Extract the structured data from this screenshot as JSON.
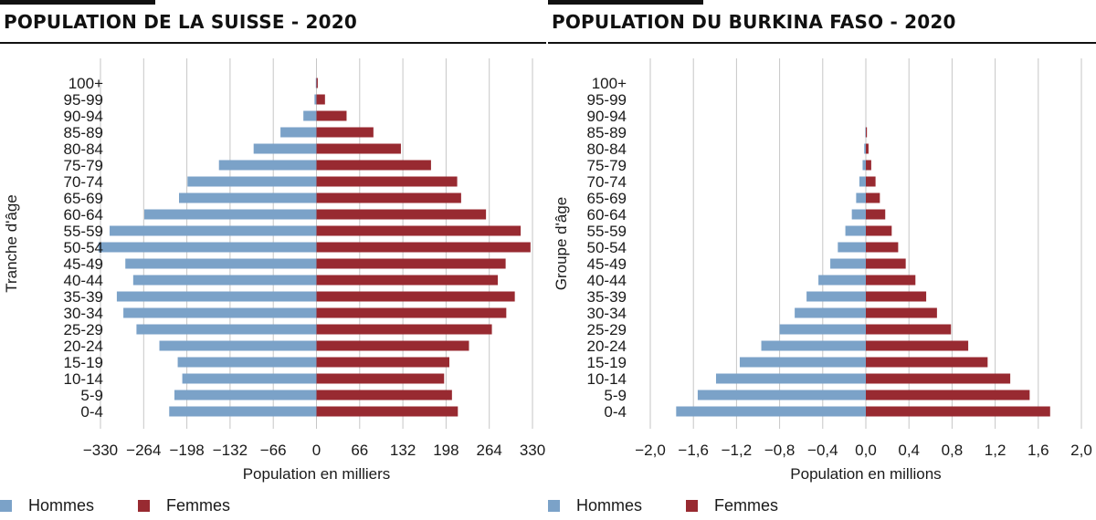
{
  "colors": {
    "men": "#7ba2c8",
    "women": "#982a31",
    "grid": "#c6c6c6",
    "text": "#1a1a1a"
  },
  "charts": {
    "ch": {
      "title": "POPULATION DE LA SUISSE - 2020",
      "legend": {
        "men": "Hommes",
        "women": "Femmes"
      }
    },
    "bf": {
      "title": "POPULATION DU BURKINA FASO - 2020",
      "legend": {
        "men": "Hommes",
        "women": "Femmes"
      }
    }
  },
  "chart_data": [
    {
      "type": "bar",
      "orientation": "horizontal",
      "title": "POPULATION DE LA SUISSE - 2020",
      "xlabel": "Population en milliers",
      "ylabel": "Tranche d'âge",
      "xlim": [
        -330,
        330
      ],
      "xticks": [
        -330,
        -264,
        -198,
        -132,
        -66,
        0,
        66,
        132,
        198,
        264,
        330
      ],
      "xtick_labels": [
        "−330",
        "−264",
        "−198",
        "−132",
        "−66",
        "0",
        "66",
        "132",
        "198",
        "264",
        "330"
      ],
      "grid": true,
      "legend_position": "bottom",
      "categories": [
        "0-4",
        "5-9",
        "10-14",
        "15-19",
        "20-24",
        "25-29",
        "30-34",
        "35-39",
        "40-44",
        "45-49",
        "50-54",
        "55-59",
        "60-64",
        "65-69",
        "70-74",
        "75-79",
        "80-84",
        "85-89",
        "90-94",
        "95-99",
        "100+"
      ],
      "series": [
        {
          "name": "Hommes",
          "values": [
            -225,
            -217,
            -205,
            -212,
            -240,
            -275,
            -295,
            -305,
            -280,
            -292,
            -333,
            -316,
            -263,
            -210,
            -197,
            -149,
            -96,
            -55,
            -20,
            -3,
            -1
          ]
        },
        {
          "name": "Femmes",
          "values": [
            216,
            207,
            195,
            203,
            233,
            268,
            290,
            303,
            277,
            289,
            327,
            312,
            259,
            221,
            215,
            175,
            129,
            87,
            46,
            13,
            2
          ]
        }
      ]
    },
    {
      "type": "bar",
      "orientation": "horizontal",
      "title": "POPULATION DU BURKINA FASO - 2020",
      "xlabel": "Population en millions",
      "ylabel": "Groupe d'âge",
      "xlim": [
        -2.0,
        2.0
      ],
      "xticks": [
        -2.0,
        -1.6,
        -1.2,
        -0.8,
        -0.4,
        0.0,
        0.4,
        0.8,
        1.2,
        1.6,
        2.0
      ],
      "xtick_labels": [
        "−2,0",
        "−1,6",
        "−1,2",
        "−0,8",
        "−0,4",
        "0,0",
        "0,4",
        "0,8",
        "1,2",
        "1,6",
        "2,0"
      ],
      "grid": true,
      "legend_position": "bottom",
      "categories": [
        "0-4",
        "5-9",
        "10-14",
        "15-19",
        "20-24",
        "25-29",
        "30-34",
        "35-39",
        "40-44",
        "45-49",
        "50-54",
        "55-59",
        "60-64",
        "65-69",
        "70-74",
        "75-79",
        "80-84",
        "85-89",
        "90-94",
        "95-99",
        "100+"
      ],
      "series": [
        {
          "name": "Hommes",
          "values": [
            -1.76,
            -1.56,
            -1.39,
            -1.17,
            -0.97,
            -0.8,
            -0.66,
            -0.55,
            -0.44,
            -0.33,
            -0.26,
            -0.19,
            -0.13,
            -0.09,
            -0.06,
            -0.03,
            -0.015,
            -0.005,
            0,
            0,
            0
          ]
        },
        {
          "name": "Femmes",
          "values": [
            1.71,
            1.52,
            1.34,
            1.13,
            0.95,
            0.79,
            0.66,
            0.56,
            0.46,
            0.37,
            0.3,
            0.24,
            0.18,
            0.13,
            0.09,
            0.05,
            0.025,
            0.01,
            0,
            0,
            0
          ]
        }
      ]
    }
  ]
}
